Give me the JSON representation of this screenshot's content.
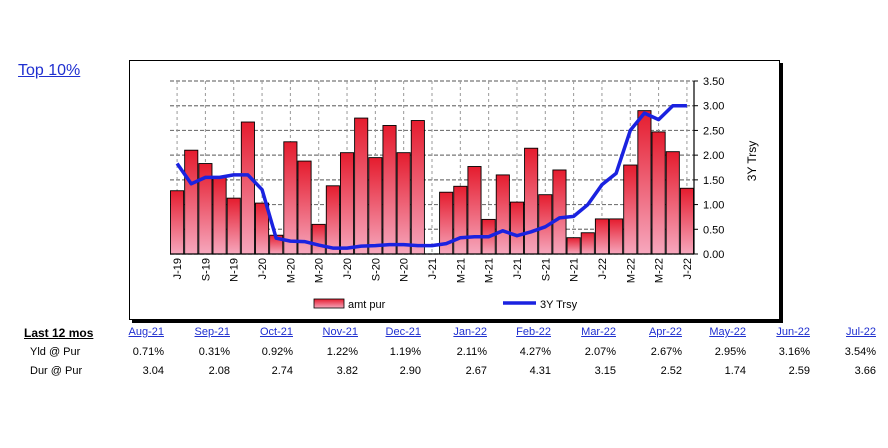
{
  "link": {
    "label": "Top 10%"
  },
  "chart_data": {
    "type": "bar+line",
    "categories": [
      "J-19",
      "",
      "S-19",
      "",
      "N-19",
      "",
      "J-20",
      "",
      "M-20",
      "",
      "M-20",
      "",
      "J-20",
      "",
      "S-20",
      "",
      "N-20",
      "",
      "J-21",
      "",
      "M-21",
      "",
      "M-21",
      "",
      "J-21",
      "",
      "S-21",
      "",
      "N-21",
      "",
      "J-22",
      "",
      "M-22",
      "",
      "M-22",
      "",
      "J-22"
    ],
    "series": [
      {
        "name": "amt pur",
        "kind": "bar",
        "color": "#e8203a",
        "values": [
          1.28,
          2.1,
          1.83,
          1.55,
          1.13,
          2.67,
          1.03,
          0.38,
          2.27,
          1.88,
          0.6,
          1.38,
          2.05,
          2.75,
          1.95,
          2.6,
          2.05,
          2.7,
          null,
          1.25,
          1.37,
          1.77,
          0.7,
          1.6,
          1.05,
          2.14,
          1.2,
          1.7,
          0.33,
          0.43,
          0.71,
          0.71,
          1.8,
          2.9,
          2.47,
          2.07,
          1.33
        ]
      },
      {
        "name": "3Y Trsy",
        "kind": "line",
        "color": "#1a22e0",
        "values": [
          1.83,
          1.42,
          1.55,
          1.55,
          1.6,
          1.6,
          1.3,
          0.32,
          0.26,
          0.25,
          0.18,
          0.12,
          0.12,
          0.16,
          0.17,
          0.19,
          0.19,
          0.17,
          0.17,
          0.21,
          0.33,
          0.35,
          0.35,
          0.47,
          0.37,
          0.45,
          0.55,
          0.73,
          0.76,
          1.0,
          1.4,
          1.63,
          2.5,
          2.85,
          2.72,
          3.0,
          3.0
        ]
      }
    ],
    "ylabel": "3Y Trsy",
    "ylim": [
      0,
      3.5
    ],
    "yticks": [
      "0.00",
      "0.50",
      "1.00",
      "1.50",
      "2.00",
      "2.50",
      "3.00",
      "3.50"
    ],
    "grid": true,
    "legend": "bottom"
  },
  "summary": {
    "title": "Last 12 mos",
    "months": [
      "Aug-21",
      "Sep-21",
      "Oct-21",
      "Nov-21",
      "Dec-21",
      "Jan-22",
      "Feb-22",
      "Mar-22",
      "Apr-22",
      "May-22",
      "Jun-22",
      "Jul-22"
    ],
    "rows": [
      {
        "label": "Yld @ Pur",
        "values": [
          "0.71%",
          "0.31%",
          "0.92%",
          "1.22%",
          "1.19%",
          "2.11%",
          "4.27%",
          "2.07%",
          "2.67%",
          "2.95%",
          "3.16%",
          "3.54%"
        ]
      },
      {
        "label": "Dur @ Pur",
        "values": [
          "3.04",
          "2.08",
          "2.74",
          "3.82",
          "2.90",
          "2.67",
          "4.31",
          "3.15",
          "2.52",
          "1.74",
          "2.59",
          "3.66"
        ]
      }
    ]
  }
}
